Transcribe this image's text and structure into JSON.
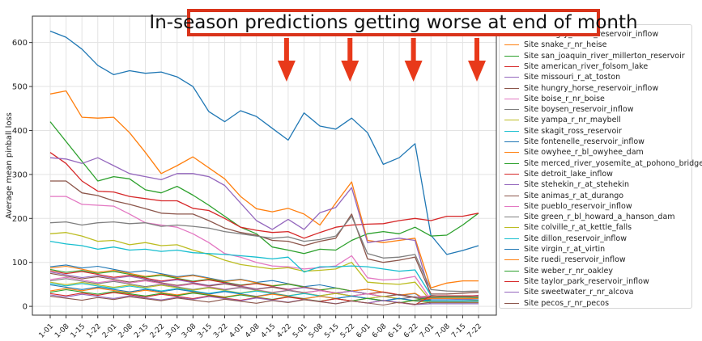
{
  "chart_data": {
    "type": "line",
    "title": "",
    "xlabel": "",
    "ylabel": "Average mean pinball loss",
    "ylim": [
      -20,
      660
    ],
    "yticks": [
      0,
      100,
      200,
      300,
      400,
      500,
      600
    ],
    "grid": true,
    "legend_position": "right",
    "x": [
      "01-01",
      "01-08",
      "01-15",
      "01-22",
      "02-01",
      "02-08",
      "02-15",
      "02-22",
      "03-01",
      "03-08",
      "03-15",
      "03-22",
      "04-01",
      "04-08",
      "04-15",
      "04-22",
      "05-01",
      "05-08",
      "05-15",
      "05-22",
      "06-01",
      "06-08",
      "06-15",
      "06-22",
      "07-01",
      "07-08",
      "07-15",
      "07-22"
    ],
    "tick_labels": [
      "1-01",
      "1-08",
      "1-15",
      "1-22",
      "2-01",
      "2-08",
      "2-15",
      "2-22",
      "3-01",
      "3-08",
      "3-15",
      "3-22",
      "4-01",
      "4-08",
      "4-15",
      "4-22",
      "5-01",
      "5-08",
      "5-15",
      "5-22",
      "6-01",
      "6-08",
      "6-15",
      "6-22",
      "7-01",
      "7-08",
      "7-15",
      "7-22"
    ],
    "series": [
      {
        "name": "Site hungry_horse_reservoir_inflow",
        "color": "#1f77b4",
        "values": [
          626,
          612,
          585,
          548,
          527,
          536,
          530,
          533,
          522,
          500,
          443,
          420,
          445,
          432,
          405,
          378,
          440,
          410,
          403,
          428,
          395,
          323,
          338,
          370,
          162,
          118,
          127,
          138
        ]
      },
      {
        "name": "Site snake_r_nr_heise",
        "color": "#ff7f0e",
        "values": [
          483,
          490,
          430,
          428,
          430,
          395,
          350,
          302,
          320,
          340,
          315,
          290,
          250,
          222,
          215,
          223,
          210,
          185,
          235,
          283,
          150,
          145,
          150,
          155,
          42,
          53,
          58,
          58
        ]
      },
      {
        "name": "Site san_joaquin_river_millerton_reservoir",
        "color": "#2ca02c",
        "values": [
          420,
          375,
          330,
          285,
          295,
          290,
          265,
          258,
          273,
          253,
          230,
          205,
          180,
          165,
          135,
          128,
          120,
          130,
          128,
          150,
          165,
          170,
          165,
          180,
          160,
          162,
          185,
          212
        ]
      },
      {
        "name": "Site american_river_folsom_lake",
        "color": "#d62728",
        "values": [
          350,
          325,
          285,
          262,
          260,
          250,
          245,
          240,
          240,
          223,
          218,
          200,
          180,
          173,
          168,
          170,
          155,
          168,
          180,
          185,
          187,
          188,
          195,
          200,
          195,
          205,
          205,
          212
        ]
      },
      {
        "name": "Site missouri_r_at_toston",
        "color": "#9467bd",
        "values": [
          338,
          335,
          325,
          338,
          320,
          302,
          295,
          288,
          302,
          302,
          295,
          275,
          235,
          195,
          175,
          198,
          175,
          213,
          225,
          270,
          145,
          150,
          155,
          150,
          20,
          22,
          22,
          25
        ]
      },
      {
        "name": "Site hungry_horse_reservoir_inflow",
        "color": "#8c564b",
        "values": [
          285,
          285,
          258,
          252,
          240,
          232,
          222,
          212,
          210,
          210,
          195,
          178,
          168,
          162,
          150,
          148,
          138,
          148,
          155,
          210,
          108,
          100,
          105,
          112,
          28,
          28,
          30,
          32
        ]
      },
      {
        "name": "Site boise_r_nr_boise",
        "color": "#e377c2",
        "values": [
          250,
          250,
          232,
          230,
          228,
          210,
          190,
          185,
          180,
          165,
          145,
          120,
          112,
          100,
          92,
          90,
          85,
          88,
          92,
          115,
          65,
          60,
          62,
          68,
          15,
          15,
          16,
          18
        ]
      },
      {
        "name": "Site boysen_reservoir_inflow",
        "color": "#7f7f7f",
        "values": [
          190,
          192,
          185,
          190,
          192,
          188,
          190,
          182,
          185,
          182,
          178,
          170,
          165,
          160,
          155,
          158,
          148,
          152,
          160,
          205,
          120,
          110,
          112,
          118,
          38,
          35,
          34,
          35
        ]
      },
      {
        "name": "Site yampa_r_nr_maybell",
        "color": "#bcbd22",
        "values": [
          165,
          168,
          160,
          148,
          150,
          140,
          145,
          138,
          140,
          128,
          118,
          105,
          95,
          90,
          85,
          88,
          80,
          82,
          85,
          100,
          55,
          52,
          50,
          55,
          12,
          12,
          12,
          13
        ]
      },
      {
        "name": "Site skagit_ross_reservoir",
        "color": "#17becf",
        "values": [
          148,
          142,
          138,
          130,
          135,
          128,
          130,
          125,
          128,
          122,
          120,
          118,
          115,
          112,
          108,
          112,
          78,
          90,
          90,
          92,
          90,
          85,
          80,
          83,
          25,
          22,
          22,
          20
        ]
      }
    ],
    "legend_entries": [
      "Site hungry_horse_reservoir_inflow",
      "Site snake_r_nr_heise",
      "Site san_joaquin_river_millerton_reservoir",
      "Site american_river_folsom_lake",
      "Site missouri_r_at_toston",
      "Site hungry_horse_reservoir_inflow",
      "Site boise_r_nr_boise",
      "Site boysen_reservoir_inflow",
      "Site yampa_r_nr_maybell",
      "Site skagit_ross_reservoir",
      "Site fontenelle_reservoir_inflow",
      "Site owyhee_r_bl_owyhee_dam",
      "Site merced_river_yosemite_at_pohono_bridge",
      "Site detroit_lake_inflow",
      "Site stehekin_r_at_stehekin",
      "Site animas_r_at_durango",
      "Site pueblo_reservoir_inflow",
      "Site green_r_bl_howard_a_hanson_dam",
      "Site colville_r_at_kettle_falls",
      "Site dillon_reservoir_inflow",
      "Site virgin_r_at_virtin",
      "Site ruedi_reservoir_inflow",
      "Site weber_r_nr_oakley",
      "Site taylor_park_reservoir_inflow",
      "Site sweetwater_r_nr_alcova",
      "Site pecos_r_nr_pecos"
    ],
    "legend_colors": [
      "#1f77b4",
      "#ff7f0e",
      "#2ca02c",
      "#d62728",
      "#9467bd",
      "#8c564b",
      "#e377c2",
      "#7f7f7f",
      "#bcbd22",
      "#17becf",
      "#1f77b4",
      "#ff7f0e",
      "#2ca02c",
      "#d62728",
      "#9467bd",
      "#8c564b",
      "#e377c2",
      "#7f7f7f",
      "#bcbd22",
      "#17becf",
      "#1f77b4",
      "#ff7f0e",
      "#2ca02c",
      "#d62728",
      "#9467bd",
      "#8c564b"
    ],
    "annotation": {
      "text": "In-season predictions getting worse at end of month",
      "border_color": "#d9331a",
      "arrow_color": "#e8391a",
      "arrow_at_x": [
        "04-22",
        "05-22",
        "06-22",
        "07-22"
      ]
    }
  }
}
